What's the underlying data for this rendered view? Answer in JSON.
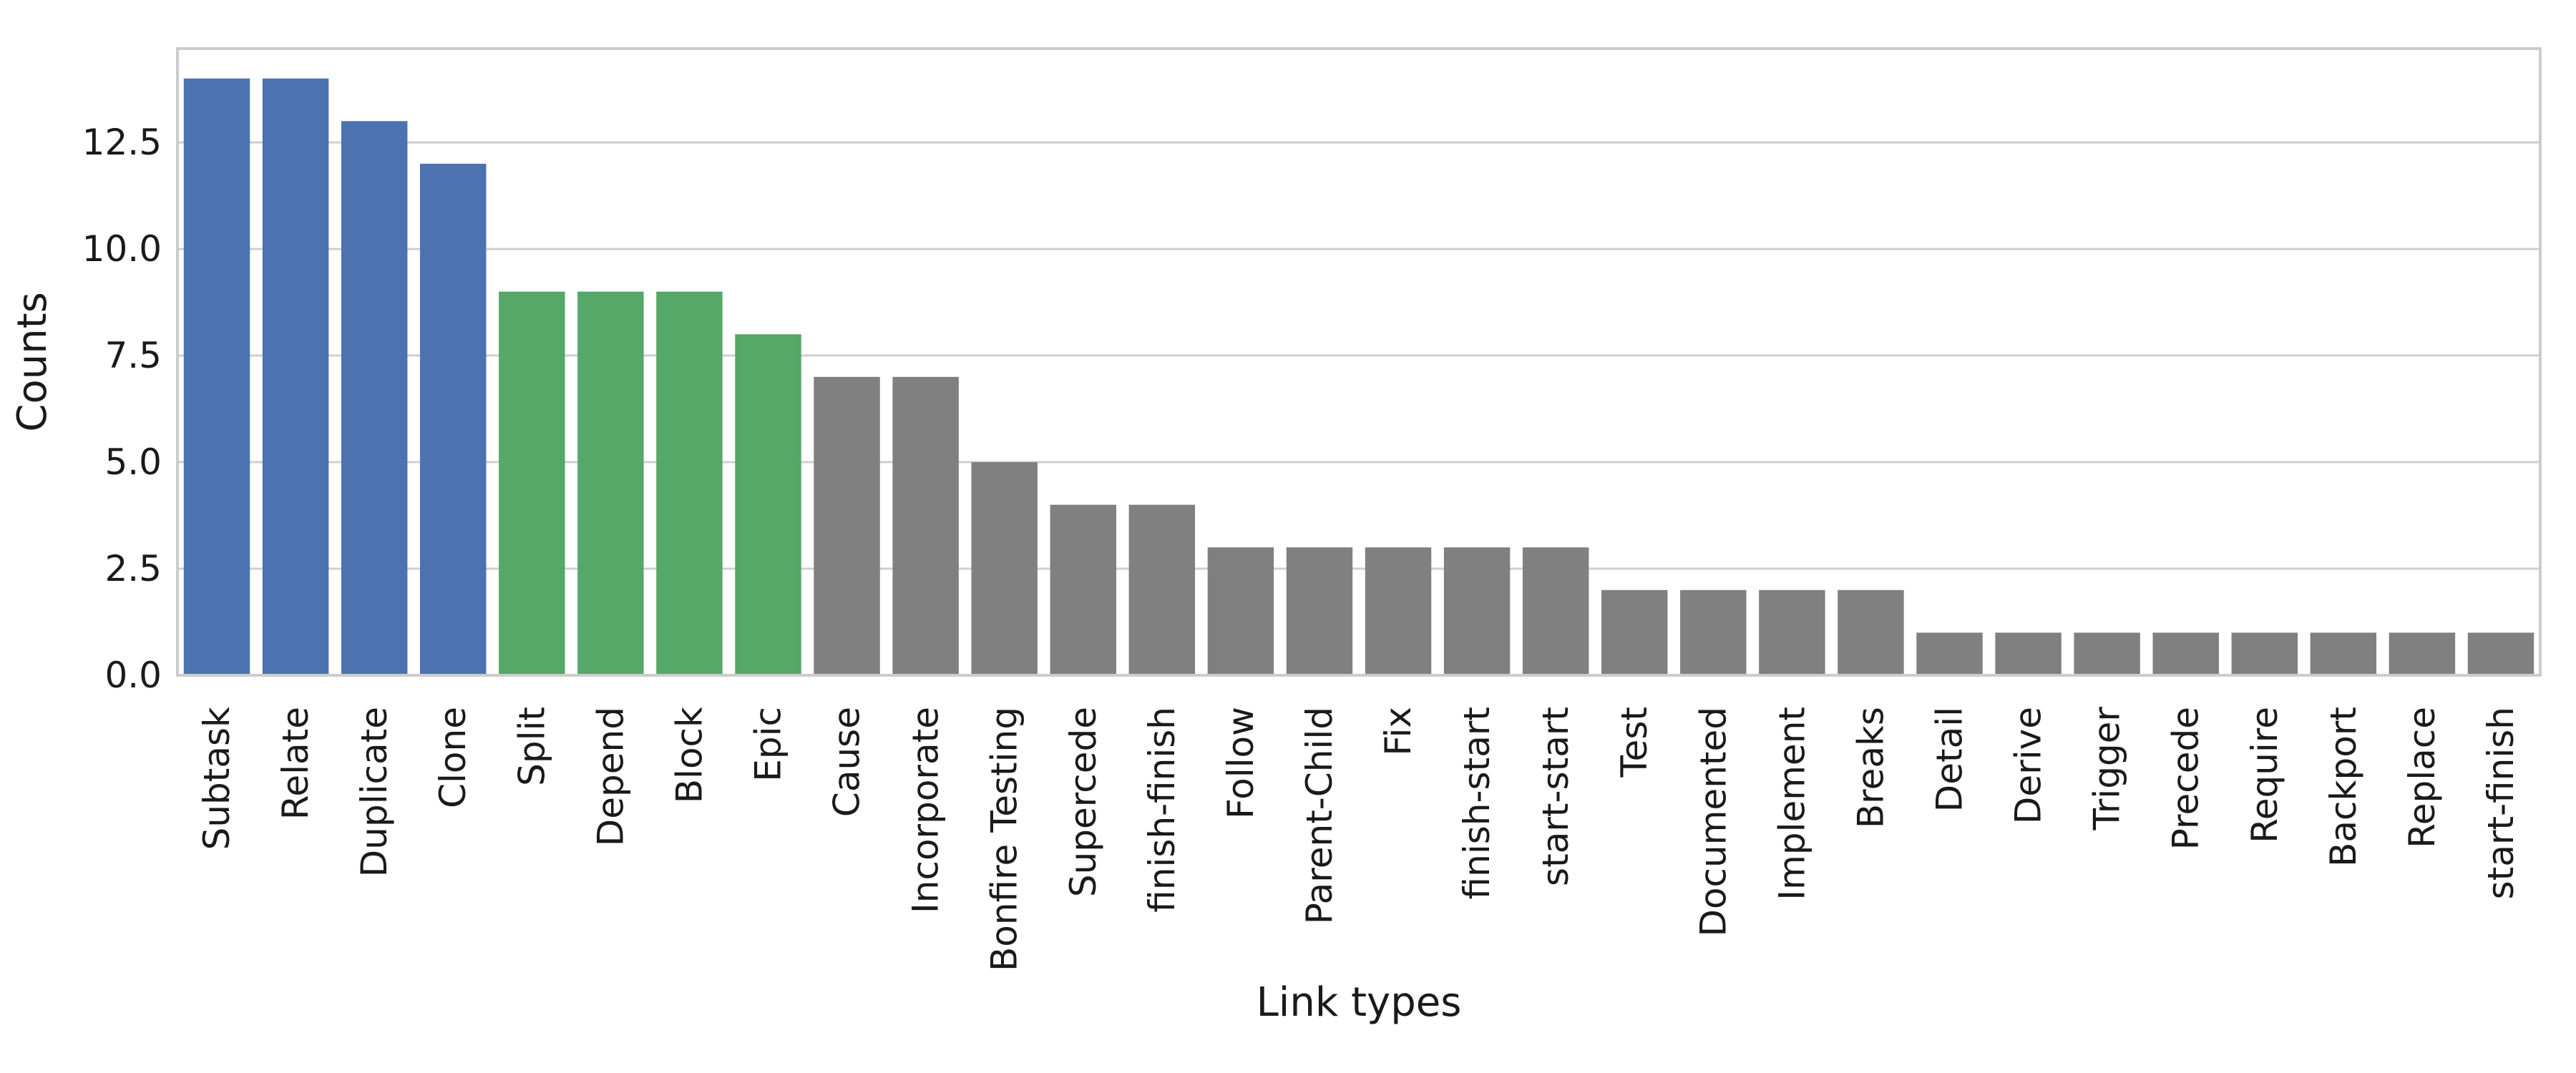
{
  "chart_data": {
    "type": "bar",
    "xlabel": "Link types",
    "ylabel": "Counts",
    "ylim": [
      0,
      14.7
    ],
    "yticks": [
      0.0,
      2.5,
      5.0,
      7.5,
      10.0,
      12.5
    ],
    "ytick_labels": [
      "0.0",
      "2.5",
      "5.0",
      "7.5",
      "10.0",
      "12.5"
    ],
    "grid": "horizontal",
    "categories": [
      "Subtask",
      "Relate",
      "Duplicate",
      "Clone",
      "Split",
      "Depend",
      "Block",
      "Epic",
      "Cause",
      "Incorporate",
      "Bonfire Testing",
      "Supercede",
      "finish-finish",
      "Follow",
      "Parent-Child",
      "Fix",
      "finish-start",
      "start-start",
      "Test",
      "Documented",
      "Implement",
      "Breaks",
      "Detail",
      "Derive",
      "Trigger",
      "Precede",
      "Require",
      "Backport",
      "Replace",
      "start-finish"
    ],
    "values": [
      14,
      14,
      13,
      12,
      9,
      9,
      9,
      8,
      7,
      7,
      5,
      4,
      4,
      3,
      3,
      3,
      3,
      3,
      2,
      2,
      2,
      2,
      1,
      1,
      1,
      1,
      1,
      1,
      1,
      1
    ],
    "bar_colors": [
      "#4c72b0",
      "#4c72b0",
      "#4c72b0",
      "#4c72b0",
      "#55a868",
      "#55a868",
      "#55a868",
      "#55a868",
      "#808080",
      "#808080",
      "#808080",
      "#808080",
      "#808080",
      "#808080",
      "#808080",
      "#808080",
      "#808080",
      "#808080",
      "#808080",
      "#808080",
      "#808080",
      "#808080",
      "#808080",
      "#808080",
      "#808080",
      "#808080",
      "#808080",
      "#808080",
      "#808080",
      "#808080"
    ]
  }
}
